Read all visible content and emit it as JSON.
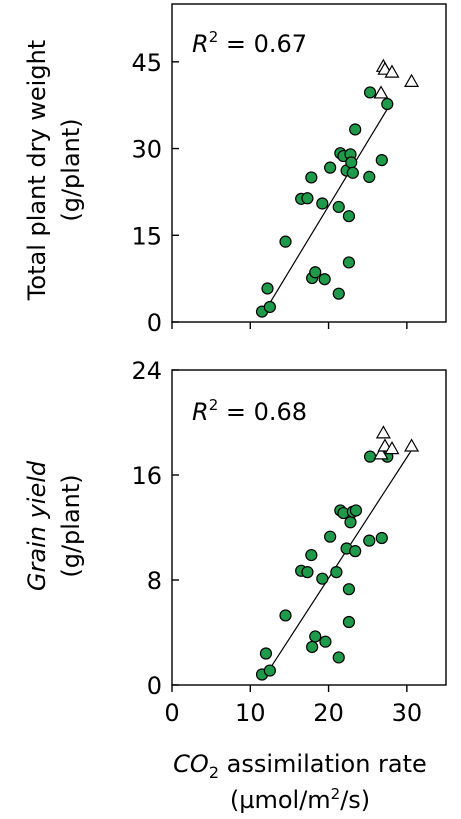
{
  "chart_data": [
    {
      "type": "scatter",
      "title": "",
      "xlabel": "",
      "ylabel": [
        "Total plant dry weight",
        "(g/plant)"
      ],
      "ylim": [
        0,
        55
      ],
      "xlim": [
        0,
        35
      ],
      "yticks": [
        0,
        15,
        30,
        45
      ],
      "xticks": [
        0,
        10,
        20,
        30
      ],
      "show_x_tick_labels": false,
      "annotation": {
        "prefix": "R",
        "sup": "2",
        "suffix": " = 0.67"
      },
      "fit": {
        "x": [
          11.7,
          27.8
        ],
        "y": [
          1.5,
          37.5
        ]
      },
      "colors": {
        "circle": "#1f9a4a",
        "triangle": "#ffffff"
      },
      "series": [
        {
          "marker": "circle",
          "points": [
            [
              11.5,
              1.8
            ],
            [
              12.2,
              5.8
            ],
            [
              12.5,
              2.6
            ],
            [
              14.5,
              13.9
            ],
            [
              16.5,
              21.3
            ],
            [
              17.3,
              21.4
            ],
            [
              17.8,
              25.0
            ],
            [
              17.9,
              7.6
            ],
            [
              18.3,
              8.6
            ],
            [
              19.2,
              20.5
            ],
            [
              19.5,
              7.4
            ],
            [
              20.2,
              26.7
            ],
            [
              21.3,
              19.9
            ],
            [
              21.3,
              4.9
            ],
            [
              21.5,
              29.2
            ],
            [
              21.9,
              28.7
            ],
            [
              22.3,
              26.2
            ],
            [
              22.6,
              18.3
            ],
            [
              22.6,
              10.3
            ],
            [
              22.8,
              29.0
            ],
            [
              22.9,
              27.6
            ],
            [
              23.1,
              25.8
            ],
            [
              23.4,
              33.3
            ],
            [
              25.2,
              25.1
            ],
            [
              25.3,
              39.7
            ],
            [
              26.8,
              28.0
            ],
            [
              27.5,
              37.7
            ]
          ]
        },
        {
          "marker": "triangle",
          "points": [
            [
              26.7,
              39.6
            ],
            [
              27.0,
              44.2
            ],
            [
              27.2,
              43.7
            ],
            [
              28.1,
              43.2
            ],
            [
              30.6,
              41.6
            ]
          ]
        }
      ]
    },
    {
      "type": "scatter",
      "title": "",
      "xlabel": {
        "main": "CO",
        "sub": "2",
        "rest": " assimilation rate"
      },
      "xunit": {
        "pre": "(µmol/m",
        "sup": "2",
        "post": "/s)"
      },
      "ylabel": [
        "Grain yield",
        "(g/plant)"
      ],
      "ylim": [
        0,
        24
      ],
      "xlim": [
        0,
        35
      ],
      "yticks": [
        0,
        8,
        16,
        24
      ],
      "xticks": [
        0,
        10,
        20,
        30
      ],
      "show_x_tick_labels": true,
      "annotation": {
        "prefix": "R",
        "sup": "2",
        "suffix": " = 0.68"
      },
      "fit": {
        "x": [
          11.7,
          30.5
        ],
        "y": [
          0.5,
          17.8
        ]
      },
      "colors": {
        "circle": "#1f9a4a",
        "triangle": "#ffffff"
      },
      "series": [
        {
          "marker": "circle",
          "points": [
            [
              11.5,
              0.8
            ],
            [
              12.0,
              2.4
            ],
            [
              12.5,
              1.1
            ],
            [
              14.5,
              5.3
            ],
            [
              16.5,
              8.7
            ],
            [
              17.3,
              8.6
            ],
            [
              17.8,
              9.9
            ],
            [
              17.9,
              2.9
            ],
            [
              18.3,
              3.7
            ],
            [
              19.2,
              8.1
            ],
            [
              19.6,
              3.3
            ],
            [
              20.2,
              11.3
            ],
            [
              21.0,
              8.6
            ],
            [
              21.3,
              2.1
            ],
            [
              21.5,
              13.3
            ],
            [
              21.9,
              13.1
            ],
            [
              22.3,
              10.4
            ],
            [
              22.6,
              7.3
            ],
            [
              22.6,
              4.8
            ],
            [
              22.8,
              12.4
            ],
            [
              23.1,
              13.2
            ],
            [
              23.4,
              10.2
            ],
            [
              23.5,
              13.3
            ],
            [
              25.2,
              11.0
            ],
            [
              25.3,
              17.4
            ],
            [
              26.8,
              11.2
            ],
            [
              27.5,
              17.4
            ]
          ]
        },
        {
          "marker": "triangle",
          "points": [
            [
              26.7,
              17.6
            ],
            [
              27.0,
              19.2
            ],
            [
              27.2,
              18.2
            ],
            [
              28.1,
              18.0
            ],
            [
              30.6,
              18.2
            ]
          ]
        }
      ]
    }
  ]
}
